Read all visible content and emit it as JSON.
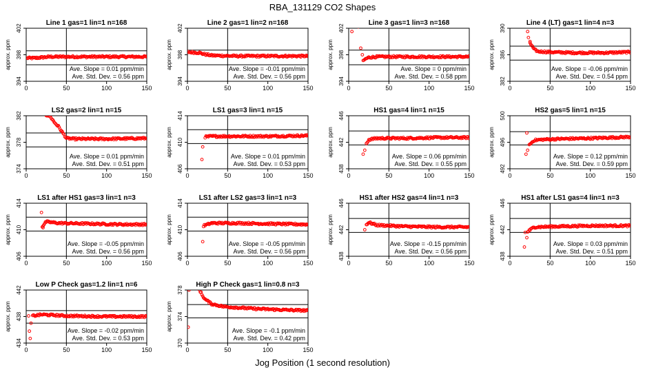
{
  "figure": {
    "title": "RBA_131129  CO2 Shapes",
    "xlabel": "Jog Position (1 second resolution)",
    "ylabel": "approx. ppm",
    "stat_slope_label": "Ave. Slope =",
    "stat_sd_label": "Ave. Std. Dev. =",
    "stat_slope_unit": "ppm/min",
    "stat_sd_unit": "ppm",
    "marker_color": "#ff0000",
    "line_color": "#000000",
    "vertical_line_x": 50
  },
  "chart_data": [
    {
      "type": "scatter",
      "title": "Line 1 gas=1 lin=1 n=168",
      "xlim": [
        0,
        150
      ],
      "ylim": [
        394,
        402
      ],
      "xticks": [
        0,
        50,
        100,
        150
      ],
      "yticks": [
        394,
        398,
        402
      ],
      "hlines": [
        398.6,
        396.5
      ],
      "slope": "0.01",
      "sd": "0.56",
      "trace": [
        [
          1,
          397.5
        ],
        [
          10,
          397.5
        ],
        [
          20,
          397.6
        ],
        [
          30,
          397.7
        ],
        [
          60,
          397.7
        ],
        [
          100,
          397.7
        ],
        [
          150,
          397.7
        ]
      ],
      "extra_points": []
    },
    {
      "type": "scatter",
      "title": "Line 2 gas=1 lin=2 n=168",
      "xlim": [
        0,
        150
      ],
      "ylim": [
        394,
        402
      ],
      "xticks": [
        0,
        50,
        100,
        150
      ],
      "yticks": [
        394,
        398,
        402
      ],
      "hlines": [
        398.7,
        396.5
      ],
      "slope": "-0.01",
      "sd": "0.56",
      "trace": [
        [
          1,
          398.4
        ],
        [
          15,
          398.3
        ],
        [
          20,
          398.1
        ],
        [
          30,
          397.9
        ],
        [
          60,
          397.8
        ],
        [
          100,
          397.8
        ],
        [
          150,
          397.8
        ]
      ],
      "extra_points": []
    },
    {
      "type": "scatter",
      "title": "Line 3 gas=1 lin=3 n=168",
      "xlim": [
        0,
        150
      ],
      "ylim": [
        394,
        402
      ],
      "xticks": [
        0,
        50,
        100,
        150
      ],
      "yticks": [
        394,
        398,
        402
      ],
      "hlines": [
        398.7,
        396.5
      ],
      "slope": "0",
      "sd": "0.58",
      "trace": [
        [
          18,
          397.0
        ],
        [
          20,
          397.3
        ],
        [
          25,
          397.6
        ],
        [
          35,
          397.7
        ],
        [
          60,
          397.7
        ],
        [
          100,
          397.7
        ],
        [
          150,
          397.7
        ]
      ],
      "extra_points": [
        [
          2,
          402.8
        ],
        [
          4,
          401.5
        ],
        [
          7,
          402.5
        ],
        [
          12,
          402.2
        ],
        [
          15,
          399.0
        ],
        [
          17,
          398.0
        ]
      ]
    },
    {
      "type": "scatter",
      "title": "Line 4 (LT) gas=1 lin=4 n=3",
      "xlim": [
        0,
        150
      ],
      "ylim": [
        382,
        390
      ],
      "xticks": [
        0,
        50,
        100,
        150
      ],
      "yticks": [
        382,
        386,
        390
      ],
      "hlines": [
        387.3,
        385.2
      ],
      "slope": "-0.06",
      "sd": "0.54",
      "trace": [
        [
          25,
          387.8
        ],
        [
          30,
          386.8
        ],
        [
          35,
          386.5
        ],
        [
          50,
          386.4
        ],
        [
          80,
          386.3
        ],
        [
          120,
          386.3
        ],
        [
          150,
          386.4
        ]
      ],
      "extra_points": [
        [
          22,
          389.5
        ],
        [
          23,
          388.6
        ],
        [
          25,
          388.0
        ]
      ]
    },
    {
      "type": "scatter",
      "title": "LS2 gas=2 lin=1 n=15",
      "xlim": [
        0,
        150
      ],
      "ylim": [
        374,
        382
      ],
      "xticks": [
        0,
        50,
        100,
        150
      ],
      "yticks": [
        374,
        378,
        382
      ],
      "hlines": [
        379.4,
        377.3
      ],
      "slope": "0.01",
      "sd": "0.51",
      "trace": [
        [
          25,
          382.1
        ],
        [
          30,
          381.9
        ],
        [
          35,
          381.0
        ],
        [
          40,
          380.4
        ],
        [
          45,
          379.5
        ],
        [
          50,
          378.6
        ],
        [
          60,
          378.5
        ],
        [
          100,
          378.5
        ],
        [
          150,
          378.6
        ]
      ],
      "extra_points": []
    },
    {
      "type": "scatter",
      "title": "LS1 gas=3 lin=1 n=15",
      "xlim": [
        0,
        150
      ],
      "ylim": [
        406,
        414
      ],
      "xticks": [
        0,
        50,
        100,
        150
      ],
      "yticks": [
        406,
        410,
        414
      ],
      "hlines": [
        411.9,
        409.8
      ],
      "slope": "0.01",
      "sd": "0.53",
      "trace": [
        [
          22,
          410.8
        ],
        [
          30,
          410.9
        ],
        [
          60,
          410.9
        ],
        [
          100,
          410.9
        ],
        [
          150,
          411.0
        ]
      ],
      "extra_points": [
        [
          18,
          407.4
        ],
        [
          19,
          409.3
        ]
      ]
    },
    {
      "type": "scatter",
      "title": "HS1 gas=4 lin=1 n=15",
      "xlim": [
        0,
        150
      ],
      "ylim": [
        438,
        446
      ],
      "xticks": [
        0,
        50,
        100,
        150
      ],
      "yticks": [
        438,
        442,
        446
      ],
      "hlines": [
        443.7,
        441.6
      ],
      "slope": "0.06",
      "sd": "0.55",
      "trace": [
        [
          22,
          441.8
        ],
        [
          25,
          442.4
        ],
        [
          35,
          442.6
        ],
        [
          70,
          442.6
        ],
        [
          110,
          442.7
        ],
        [
          150,
          442.7
        ]
      ],
      "extra_points": [
        [
          18,
          440.2
        ],
        [
          20,
          440.8
        ]
      ]
    },
    {
      "type": "scatter",
      "title": "HS2 gas=5 lin=1 n=15",
      "xlim": [
        0,
        150
      ],
      "ylim": [
        492,
        500
      ],
      "xticks": [
        0,
        50,
        100,
        150
      ],
      "yticks": [
        492,
        496,
        500
      ],
      "hlines": [
        497.6,
        495.6
      ],
      "slope": "0.12",
      "sd": "0.59",
      "trace": [
        [
          24,
          495.6
        ],
        [
          30,
          496.3
        ],
        [
          40,
          496.4
        ],
        [
          60,
          496.5
        ],
        [
          100,
          496.6
        ],
        [
          150,
          496.8
        ]
      ],
      "extra_points": [
        [
          20,
          494.2
        ],
        [
          21,
          497.4
        ],
        [
          22,
          494.8
        ]
      ]
    },
    {
      "type": "scatter",
      "title": "LS1 after HS1 gas=3 lin=1 n=3",
      "xlim": [
        0,
        150
      ],
      "ylim": [
        406,
        414
      ],
      "xticks": [
        0,
        50,
        100,
        150
      ],
      "yticks": [
        406,
        410,
        414
      ],
      "hlines": [
        411.9,
        409.8
      ],
      "slope": "-0.05",
      "sd": "0.56",
      "trace": [
        [
          20,
          410.5
        ],
        [
          25,
          411.2
        ],
        [
          40,
          411.0
        ],
        [
          80,
          410.9
        ],
        [
          120,
          410.8
        ],
        [
          150,
          410.8
        ]
      ],
      "extra_points": [
        [
          19,
          412.6
        ],
        [
          21,
          410.3
        ]
      ]
    },
    {
      "type": "scatter",
      "title": "LS1 after LS2 gas=3 lin=1 n=3",
      "xlim": [
        0,
        150
      ],
      "ylim": [
        406,
        414
      ],
      "xticks": [
        0,
        50,
        100,
        150
      ],
      "yticks": [
        406,
        410,
        414
      ],
      "hlines": [
        411.9,
        409.8
      ],
      "slope": "-0.05",
      "sd": "0.56",
      "trace": [
        [
          20,
          410.6
        ],
        [
          30,
          411.0
        ],
        [
          60,
          411.0
        ],
        [
          100,
          410.9
        ],
        [
          150,
          410.8
        ]
      ],
      "extra_points": [
        [
          19,
          408.2
        ]
      ]
    },
    {
      "type": "scatter",
      "title": "HS1 after HS2 gas=4 lin=1 n=3",
      "xlim": [
        0,
        150
      ],
      "ylim": [
        438,
        446
      ],
      "xticks": [
        0,
        50,
        100,
        150
      ],
      "yticks": [
        438,
        442,
        446
      ],
      "hlines": [
        443.7,
        441.6
      ],
      "slope": "-0.15",
      "sd": "0.56",
      "trace": [
        [
          22,
          442.8
        ],
        [
          25,
          443.1
        ],
        [
          35,
          442.7
        ],
        [
          70,
          442.5
        ],
        [
          110,
          442.4
        ],
        [
          150,
          442.4
        ]
      ],
      "extra_points": [
        [
          18,
          446.4
        ],
        [
          20,
          442.0
        ]
      ]
    },
    {
      "type": "scatter",
      "title": "HS1 after LS1 gas=4 lin=1 n=3",
      "xlim": [
        0,
        150
      ],
      "ylim": [
        438,
        446
      ],
      "xticks": [
        0,
        50,
        100,
        150
      ],
      "yticks": [
        438,
        442,
        446
      ],
      "hlines": [
        443.7,
        441.6
      ],
      "slope": "0.03",
      "sd": "0.51",
      "trace": [
        [
          22,
          441.7
        ],
        [
          30,
          442.4
        ],
        [
          60,
          442.5
        ],
        [
          100,
          442.6
        ],
        [
          150,
          442.6
        ]
      ],
      "extra_points": [
        [
          18,
          439.4
        ],
        [
          19,
          441.6
        ],
        [
          21,
          440.8
        ]
      ]
    },
    {
      "type": "scatter",
      "title": "Low P Check gas=1.2 lin=1 n=6",
      "xlim": [
        0,
        150
      ],
      "ylim": [
        434,
        442
      ],
      "xticks": [
        0,
        50,
        100,
        150
      ],
      "yticks": [
        434,
        438,
        442
      ],
      "hlines": [
        438.9,
        437.0
      ],
      "slope": "-0.02",
      "sd": "0.53",
      "trace": [
        [
          8,
          438.1
        ],
        [
          20,
          438.3
        ],
        [
          50,
          438.1
        ],
        [
          100,
          438.0
        ],
        [
          150,
          438.0
        ]
      ],
      "extra_points": [
        [
          3,
          438.1
        ],
        [
          4,
          435.8
        ],
        [
          5,
          434.7
        ],
        [
          6,
          437.0
        ]
      ]
    },
    {
      "type": "scatter",
      "title": "High P Check gas=1 lin=0.8 n=3",
      "xlim": [
        0,
        150
      ],
      "ylim": [
        370,
        378
      ],
      "xticks": [
        0,
        50,
        100,
        150
      ],
      "yticks": [
        370,
        374,
        378
      ],
      "hlines": [
        375.8,
        373.8
      ],
      "slope": "-0.1",
      "sd": "0.42",
      "trace": [
        [
          14,
          378.3
        ],
        [
          18,
          377.3
        ],
        [
          22,
          376.6
        ],
        [
          30,
          375.9
        ],
        [
          45,
          375.5
        ],
        [
          80,
          375.2
        ],
        [
          120,
          375.0
        ],
        [
          150,
          374.9
        ]
      ],
      "extra_points": [
        [
          1,
          372.4
        ],
        [
          2,
          378.0
        ],
        [
          3,
          378.5
        ],
        [
          10,
          379.2
        ],
        [
          12,
          378.6
        ]
      ]
    }
  ]
}
